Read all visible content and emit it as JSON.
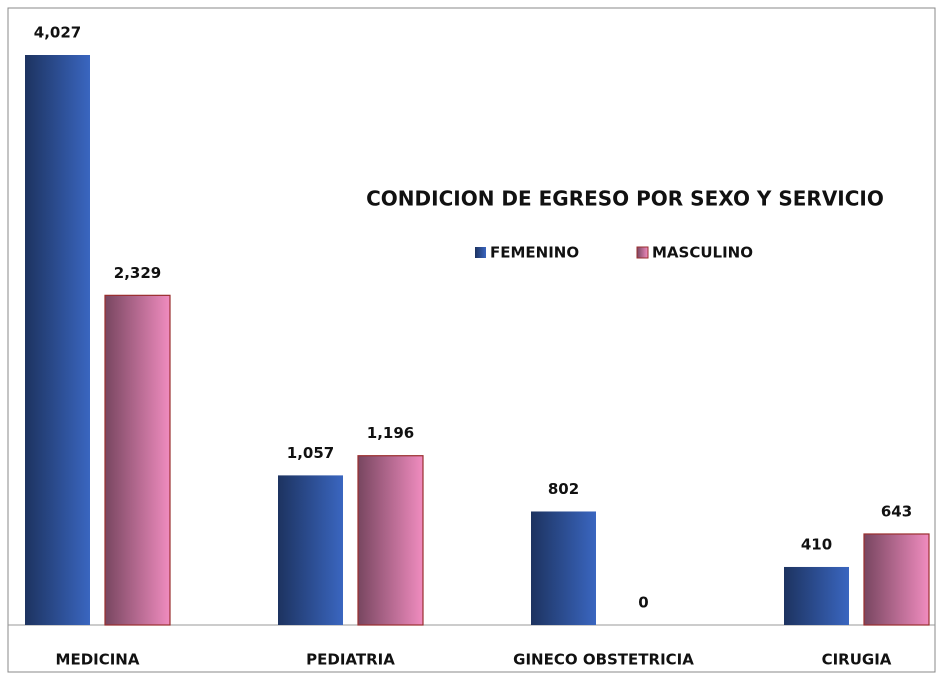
{
  "chart_data": {
    "type": "bar",
    "title": "CONDICION DE EGRESO POR SEXO Y SERVICIO",
    "categories": [
      "MEDICINA",
      "PEDIATRIA",
      "GINECO OBSTETRICIA",
      "CIRUGIA"
    ],
    "series": [
      {
        "name": "FEMENINO",
        "color": "#3a66c0",
        "values": [
          4027,
          1057,
          802,
          410
        ],
        "value_labels": [
          "4,027",
          "1,057",
          "802",
          "410"
        ]
      },
      {
        "name": "MASCULINO",
        "color": "#f08cbf",
        "values": [
          2329,
          1196,
          0,
          643
        ],
        "value_labels": [
          "2,329",
          "1,196",
          "0",
          "643"
        ]
      }
    ],
    "legend": "top-right"
  }
}
